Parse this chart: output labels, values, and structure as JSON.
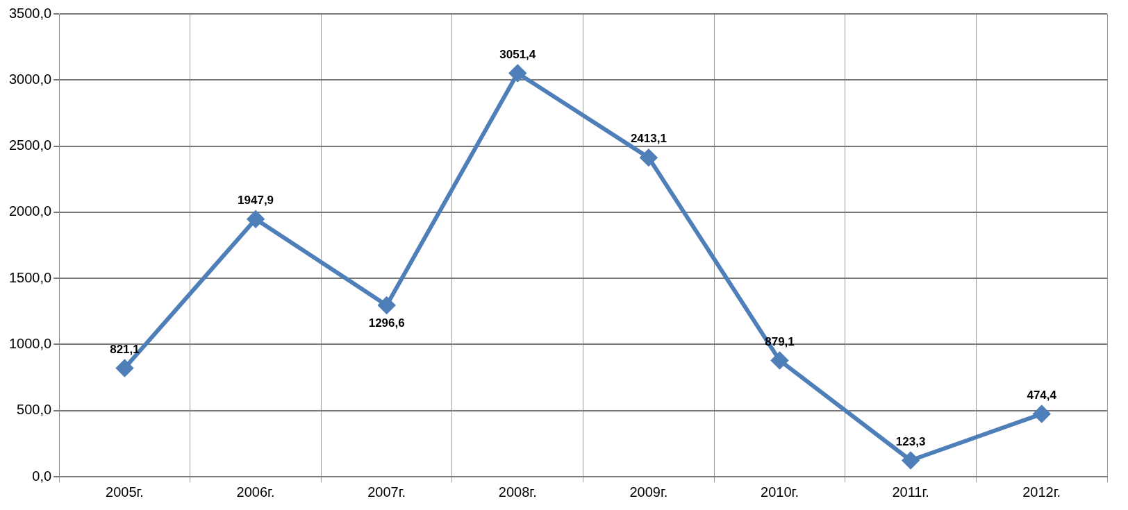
{
  "chart_data": {
    "type": "line",
    "categories": [
      "2005г.",
      "2006г.",
      "2007г.",
      "2008г.",
      "2009г.",
      "2010г.",
      "2011г.",
      "2012г."
    ],
    "series": [
      {
        "color": "#4f7fb8",
        "values": [
          821.1,
          1947.9,
          1296.6,
          3051.4,
          2413.1,
          879.1,
          123.3,
          474.4
        ],
        "value_labels": [
          "821,1",
          "1947,9",
          "1296,6",
          "3051,4",
          "2413,1",
          "879,1",
          "123,3",
          "474,4"
        ]
      }
    ],
    "ylim": [
      0,
      3500
    ],
    "yticks": [
      {
        "value": 0,
        "label": "0,0"
      },
      {
        "value": 500,
        "label": "500,0"
      },
      {
        "value": 1000,
        "label": "1000,0"
      },
      {
        "value": 1500,
        "label": "1500,0"
      },
      {
        "value": 2000,
        "label": "2000,0"
      },
      {
        "value": 2500,
        "label": "2500,0"
      },
      {
        "value": 3000,
        "label": "3000,0"
      },
      {
        "value": 3500,
        "label": "3500,0"
      }
    ],
    "grid": true,
    "legend": false,
    "marker": "diamond",
    "line_style": "solid"
  }
}
